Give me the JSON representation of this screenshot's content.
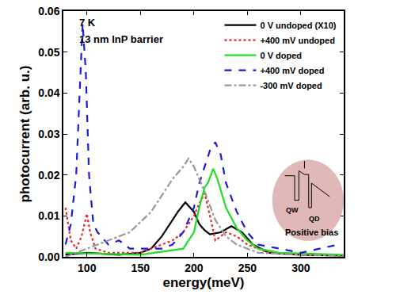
{
  "chart_data": {
    "type": "line",
    "x_label": "energy(meV)",
    "y_label": "photocurrent (arb. u.)",
    "annotations": [
      "7 K",
      "13 nm InP barrier",
      "QW",
      "QD",
      "Positive bias"
    ],
    "xlim": [
      78,
      340
    ],
    "xticks": [
      100,
      150,
      200,
      250,
      300
    ],
    "ylim": [
      0,
      0.06
    ],
    "yticks": [
      {
        "value": 0,
        "label": "0.00"
      },
      {
        "value": 0.01,
        "label": "0.01"
      },
      {
        "value": 0.02,
        "label": "0.02"
      },
      {
        "value": 0.03,
        "label": "0.03"
      },
      {
        "value": 0.04,
        "label": "0.04"
      },
      {
        "value": 0.05,
        "label": "0.05"
      },
      {
        "value": 0.06,
        "label": "0.06"
      }
    ],
    "legend": "top right",
    "grid": false,
    "series": [
      {
        "name": "0 V undoped (X10)",
        "color": "#000000",
        "line_style": "solid",
        "x": [
          80,
          100,
          130,
          150,
          160,
          170,
          180,
          185,
          192,
          200,
          205,
          210,
          215,
          225,
          235,
          245,
          255,
          270,
          300,
          340
        ],
        "values": [
          0.0005,
          0.001,
          0.0005,
          0.001,
          0.002,
          0.005,
          0.009,
          0.011,
          0.0133,
          0.011,
          0.008,
          0.0065,
          0.0055,
          0.006,
          0.0075,
          0.006,
          0.003,
          0.001,
          0.0005,
          0.0003
        ]
      },
      {
        "name": "+400 mV undoped",
        "color": "#e8252b",
        "line_style": "dot",
        "x": [
          80,
          85,
          90,
          95,
          100,
          103,
          108,
          120,
          150,
          180,
          190,
          200,
          205,
          210,
          215,
          220,
          230,
          240,
          250,
          270,
          300,
          340
        ],
        "values": [
          0.012,
          0.004,
          0.002,
          0.005,
          0.0105,
          0.006,
          0.002,
          0.001,
          0.001,
          0.004,
          0.006,
          0.01,
          0.013,
          0.0155,
          0.01,
          0.004,
          0.006,
          0.005,
          0.003,
          0.001,
          0.0005,
          0.0003
        ]
      },
      {
        "name": "0 V doped",
        "color": "#22dd22",
        "line_style": "solid",
        "x": [
          80,
          150,
          190,
          200,
          205,
          210,
          213,
          218,
          222,
          230,
          240,
          250,
          260,
          280,
          340
        ],
        "values": [
          0.001,
          0.0005,
          0.002,
          0.006,
          0.012,
          0.017,
          0.018,
          0.0215,
          0.019,
          0.012,
          0.007,
          0.004,
          0.002,
          0.001,
          0.0005
        ]
      },
      {
        "name": "+400 mV doped",
        "color": "#1a1adb",
        "line_style": "dash",
        "x": [
          80,
          85,
          90,
          93,
          96,
          99,
          102,
          106,
          110,
          120,
          130,
          140,
          150,
          170,
          180,
          190,
          200,
          205,
          210,
          215,
          220,
          225,
          230,
          240,
          250,
          260,
          280,
          300,
          335
        ],
        "values": [
          0.003,
          0.008,
          0.02,
          0.04,
          0.057,
          0.045,
          0.02,
          0.008,
          0.006,
          0.003,
          0.004,
          0.002,
          0.002,
          0.002,
          0.003,
          0.006,
          0.012,
          0.018,
          0.022,
          0.026,
          0.028,
          0.025,
          0.018,
          0.011,
          0.006,
          0.003,
          0.002,
          0.001,
          0.003
        ]
      },
      {
        "name": "-300 mV doped",
        "color": "#999999",
        "line_style": "dashdot",
        "x": [
          80,
          100,
          120,
          140,
          160,
          170,
          180,
          190,
          195,
          200,
          210,
          220,
          230,
          240,
          260,
          300,
          340
        ],
        "values": [
          0.0,
          0.002,
          0.004,
          0.006,
          0.011,
          0.015,
          0.019,
          0.022,
          0.024,
          0.022,
          0.016,
          0.009,
          0.005,
          0.003,
          0.001,
          0.0005,
          0.0003
        ]
      }
    ]
  }
}
